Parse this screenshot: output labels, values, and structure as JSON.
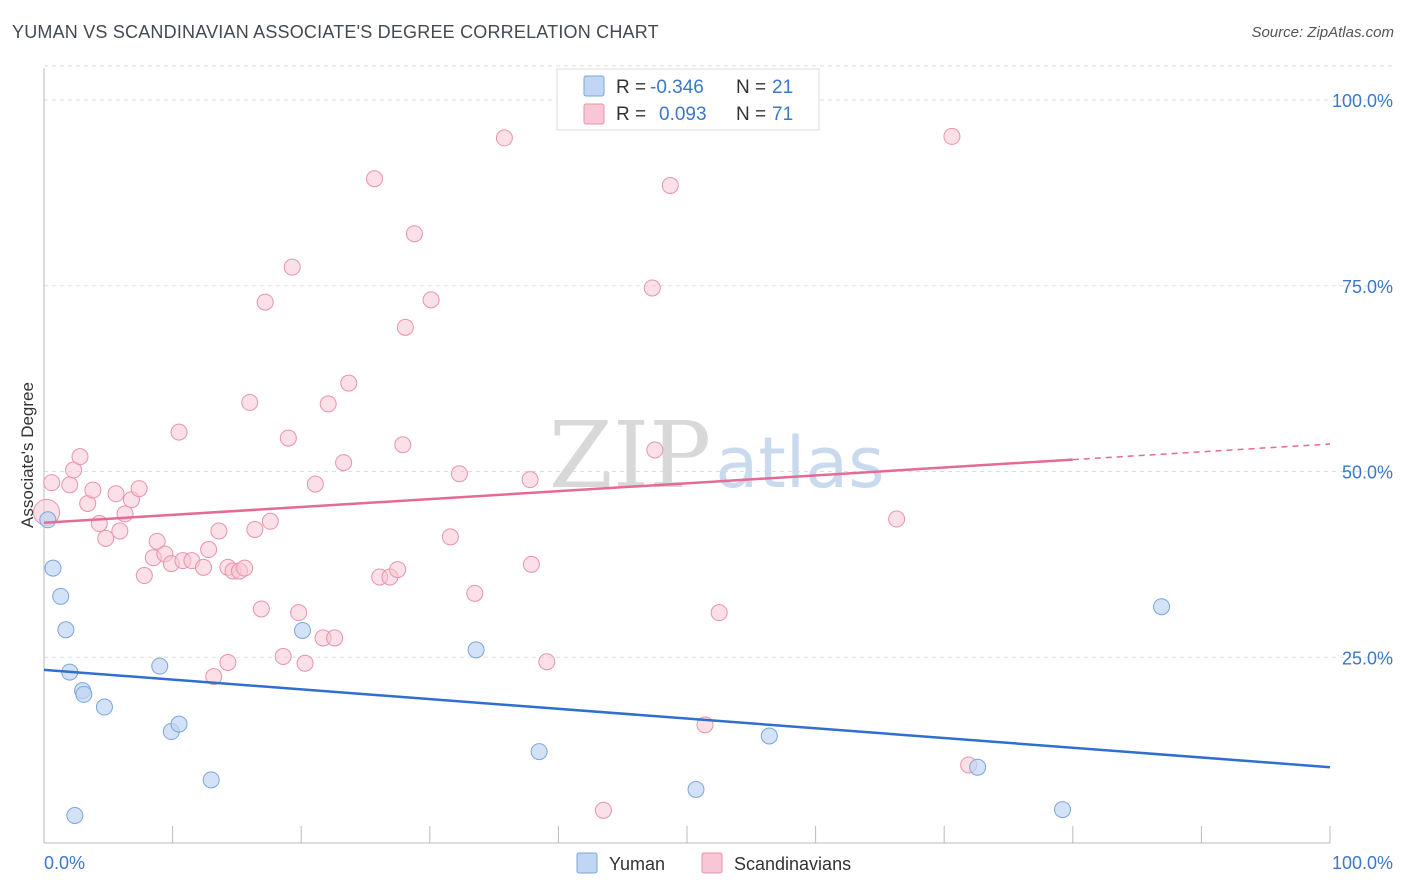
{
  "chart_title": "YUMAN VS SCANDINAVIAN ASSOCIATE'S DEGREE CORRELATION CHART",
  "source": "Source: ZipAtlas.com",
  "watermark": {
    "zip": "ZIP",
    "atlas": "atlas"
  },
  "colors": {
    "yuman_fill": "#c0d6f2",
    "yuman_stroke": "#7ba6db",
    "yuman_line": "#2f6fce",
    "scand_fill": "#f8c6d4",
    "scand_stroke": "#e893ad",
    "scand_line": "#e56b94",
    "accent_text": "#3b78c9",
    "grid": "#dddddd"
  },
  "legend_top": {
    "rows": [
      {
        "r_label": "R =",
        "r_value": "-0.346",
        "n_label": "N =",
        "n_value": "21"
      },
      {
        "r_label": "R =",
        "r_value": "0.093",
        "n_label": "N =",
        "n_value": "71"
      }
    ]
  },
  "chart_data": {
    "type": "scatter",
    "title": "YUMAN VS SCANDINAVIAN ASSOCIATE'S DEGREE CORRELATION CHART",
    "xlabel": "",
    "ylabel": "Associate's Degree",
    "xlim": [
      0,
      100
    ],
    "ylim": [
      0,
      105
    ],
    "x_tick_labels": [
      "0.0%",
      "100.0%"
    ],
    "y_ticks": [
      25,
      50,
      75,
      100
    ],
    "y_tick_labels": [
      "25.0%",
      "50.0%",
      "75.0%",
      "100.0%"
    ],
    "grid": true,
    "legend": [
      "Yuman",
      "Scandinavians"
    ],
    "series": [
      {
        "name": "Yuman",
        "points": [
          [
            0.3,
            43.5
          ],
          [
            0.7,
            37
          ],
          [
            1.3,
            33.2
          ],
          [
            1.7,
            28.7
          ],
          [
            2.0,
            23
          ],
          [
            3.0,
            20.5
          ],
          [
            3.1,
            20
          ],
          [
            4.7,
            18.3
          ],
          [
            9.0,
            23.8
          ],
          [
            9.9,
            15
          ],
          [
            10.5,
            16
          ],
          [
            13.0,
            8.5
          ],
          [
            20.1,
            28.6
          ],
          [
            33.6,
            26
          ],
          [
            38.5,
            12.3
          ],
          [
            50.7,
            7.2
          ],
          [
            56.4,
            14.4
          ],
          [
            72.6,
            10.2
          ],
          [
            79.2,
            4.5
          ],
          [
            86.9,
            31.8
          ],
          [
            2.4,
            3.7
          ]
        ],
        "trend": {
          "x": [
            0,
            100
          ],
          "y": [
            23.3,
            10.2
          ]
        }
      },
      {
        "name": "Scandinavians",
        "points": [
          [
            0.2,
            44.5
          ],
          [
            0.6,
            48.5
          ],
          [
            2.0,
            48.2
          ],
          [
            2.3,
            50.2
          ],
          [
            2.8,
            52
          ],
          [
            3.4,
            45.7
          ],
          [
            3.8,
            47.5
          ],
          [
            4.3,
            43
          ],
          [
            4.8,
            41
          ],
          [
            5.6,
            47
          ],
          [
            5.9,
            42
          ],
          [
            6.3,
            44.3
          ],
          [
            6.8,
            46.2
          ],
          [
            7.4,
            47.7
          ],
          [
            7.8,
            36
          ],
          [
            8.5,
            38.4
          ],
          [
            8.8,
            40.6
          ],
          [
            9.4,
            38.9
          ],
          [
            9.9,
            37.6
          ],
          [
            10.5,
            55.3
          ],
          [
            10.8,
            38
          ],
          [
            11.5,
            38
          ],
          [
            12.4,
            37.1
          ],
          [
            12.8,
            39.5
          ],
          [
            13.2,
            22.4
          ],
          [
            13.6,
            42
          ],
          [
            14.3,
            37.1
          ],
          [
            14.7,
            36.6
          ],
          [
            15.2,
            36.6
          ],
          [
            15.6,
            37
          ],
          [
            16,
            59.3
          ],
          [
            16.4,
            42.2
          ],
          [
            16.9,
            31.5
          ],
          [
            17.2,
            72.8
          ],
          [
            17.6,
            43.3
          ],
          [
            18.6,
            25.1
          ],
          [
            19,
            54.5
          ],
          [
            19.3,
            77.5
          ],
          [
            19.8,
            31
          ],
          [
            20.3,
            24.2
          ],
          [
            21.1,
            48.3
          ],
          [
            21.7,
            27.6
          ],
          [
            22.1,
            59.1
          ],
          [
            22.6,
            27.6
          ],
          [
            23.3,
            51.2
          ],
          [
            23.7,
            61.9
          ],
          [
            25.7,
            89.4
          ],
          [
            26.1,
            35.8
          ],
          [
            26.9,
            35.8
          ],
          [
            27.5,
            36.8
          ],
          [
            27.9,
            53.6
          ],
          [
            28.1,
            69.4
          ],
          [
            28.8,
            82
          ],
          [
            30.1,
            73.1
          ],
          [
            31.6,
            41.2
          ],
          [
            32.3,
            49.7
          ],
          [
            33.5,
            33.6
          ],
          [
            35.8,
            94.9
          ],
          [
            37.9,
            37.5
          ],
          [
            37.8,
            48.9
          ],
          [
            39.1,
            24.4
          ],
          [
            43.5,
            4.4
          ],
          [
            47.3,
            74.7
          ],
          [
            47.5,
            52.9
          ],
          [
            48.7,
            88.5
          ],
          [
            51.4,
            15.9
          ],
          [
            52.5,
            31
          ],
          [
            66.3,
            43.6
          ],
          [
            70.6,
            95.1
          ],
          [
            71.9,
            10.5
          ],
          [
            14.3,
            24.3
          ]
        ],
        "trend": {
          "x": [
            0,
            80
          ],
          "y": [
            43.1,
            51.6
          ],
          "dashed_to": [
            100,
            53.7
          ]
        }
      }
    ]
  }
}
